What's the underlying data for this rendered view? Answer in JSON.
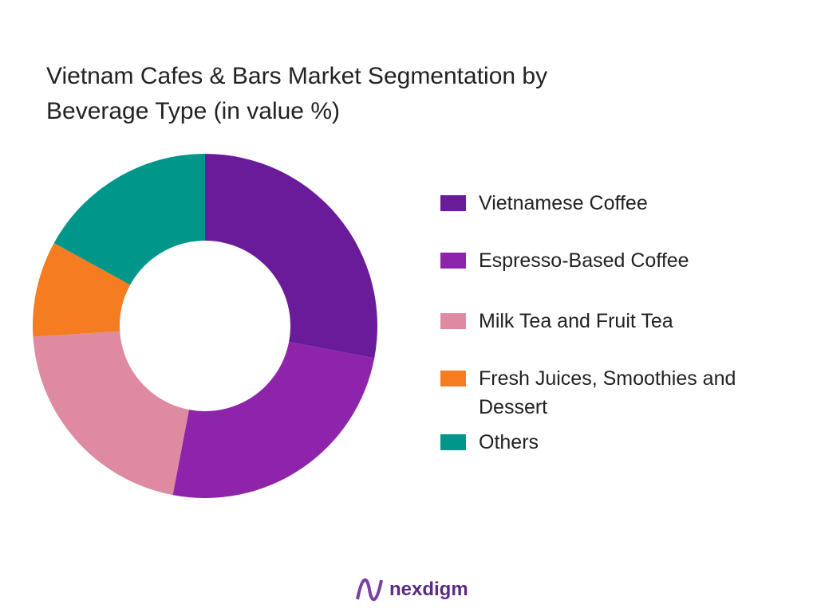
{
  "chart_data": {
    "type": "donut",
    "title": "Vietnam Cafes & Bars Market Segmentation by Beverage Type (in value %)",
    "categories": [
      "Vietnamese Coffee",
      "Espresso-Based Coffee",
      "Milk Tea and Fruit Tea",
      "Fresh Juices, Smoothies and Dessert",
      "Others"
    ],
    "values": [
      28,
      25,
      21,
      9,
      17
    ],
    "colors": [
      "#6a1b9a",
      "#8e24aa",
      "#de8aa0",
      "#f57c20",
      "#00968a"
    ]
  },
  "logo": "nexdigm"
}
